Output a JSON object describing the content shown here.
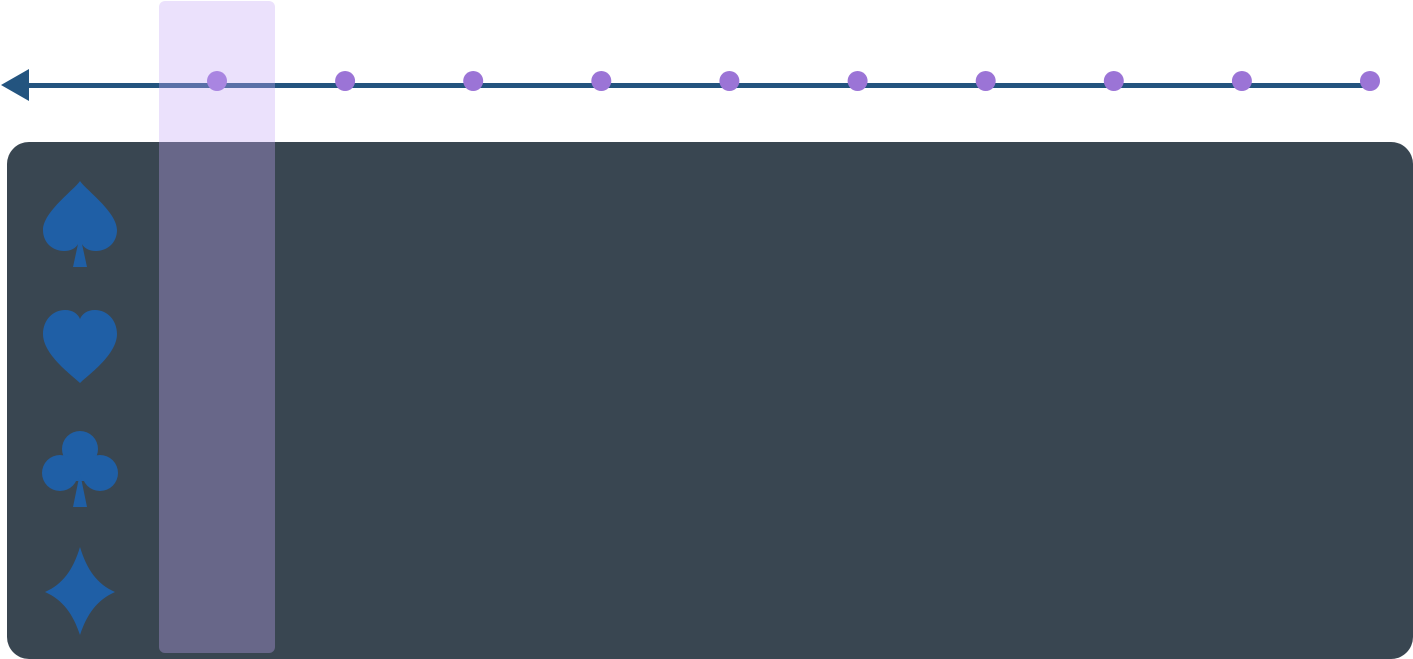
{
  "colors": {
    "background": "#ffffff",
    "board": "#394651",
    "timeline_line": "#23547f",
    "step_marker": "#9b74d6",
    "suit": "#1f5fa6",
    "column_highlight": "#c5a8f5"
  },
  "timeline": {
    "arrow_icon": "arrow-left-icon",
    "step_count": 10,
    "selected_step": 1
  },
  "suits": [
    {
      "name": "spade",
      "icon": "spade-icon"
    },
    {
      "name": "heart",
      "icon": "heart-icon"
    },
    {
      "name": "club",
      "icon": "club-icon"
    },
    {
      "name": "diamond",
      "icon": "diamond-icon"
    }
  ]
}
